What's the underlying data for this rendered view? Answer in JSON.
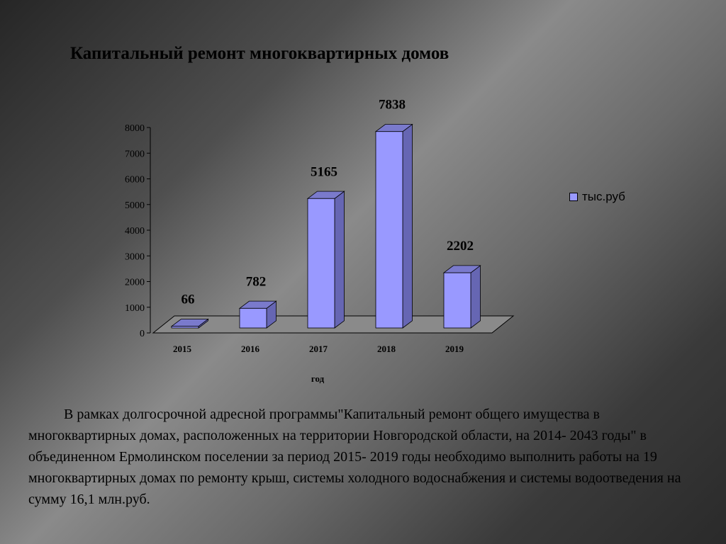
{
  "slide": {
    "title": "Капитальный ремонт многоквартирных домов",
    "description": "В рамках долгосрочной адресной программы\"Капитальный ремонт общего имущества в многоквартирных домах, расположенных на территории Новгородской области, на 2014- 2043 годы\" в объединенном Ермолинском  поселении  за период 2015- 2019 годы необходимо выполнить работы на 19 многоквартирных домах по ремонту крыш, системы холодного водоснабжения и системы водоотведения на  сумму 16,1 млн.руб."
  },
  "colors": {
    "bar_front": "#9999ff",
    "bar_top": "#7a7acc",
    "bar_side": "#6666b3",
    "floor": "#8a8a8a"
  },
  "chart_data": {
    "type": "bar",
    "categories": [
      "2015",
      "2016",
      "2017",
      "2018",
      "2019"
    ],
    "series": [
      {
        "name": "тыс.руб",
        "values": [
          66,
          782,
          5165,
          7838,
          2202
        ]
      }
    ],
    "data_labels": [
      "66",
      "782",
      "5165",
      "7838",
      "2202"
    ],
    "title": "",
    "xlabel": "год",
    "ylabel": "",
    "ylim": [
      0,
      8000
    ],
    "yticks": [
      0,
      1000,
      2000,
      3000,
      4000,
      5000,
      6000,
      7000,
      8000
    ],
    "legend": "right",
    "grid": false,
    "style": "3d"
  }
}
